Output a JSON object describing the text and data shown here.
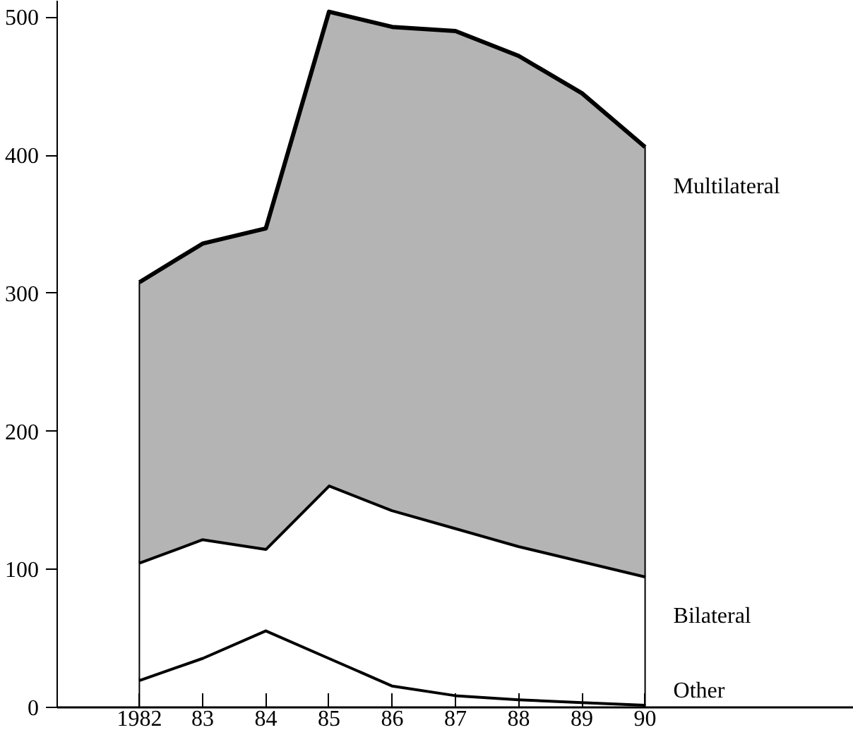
{
  "chart_data": {
    "type": "area",
    "stacked": true,
    "x": [
      1982,
      1983,
      1984,
      1985,
      1986,
      1987,
      1988,
      1989,
      1990
    ],
    "series": [
      {
        "name": "Other",
        "color": "#ffffff",
        "values": [
          20,
          36,
          56,
          36,
          16,
          9,
          6,
          4,
          2
        ]
      },
      {
        "name": "Bilateral",
        "color": "#ffffff",
        "values": [
          85,
          86,
          59,
          125,
          127,
          121,
          111,
          102,
          93
        ]
      },
      {
        "name": "Multilateral",
        "color": "#b4b4b4",
        "values": [
          203,
          214,
          232,
          343,
          350,
          360,
          355,
          339,
          311
        ]
      }
    ],
    "xlim": [
      1980.7,
      1993.3
    ],
    "ylim": [
      0,
      512
    ],
    "xticks": [
      {
        "value": 1982,
        "label": "1982"
      },
      {
        "value": 1983,
        "label": "83"
      },
      {
        "value": 1984,
        "label": "84"
      },
      {
        "value": 1985,
        "label": "85"
      },
      {
        "value": 1986,
        "label": "86"
      },
      {
        "value": 1987,
        "label": "87"
      },
      {
        "value": 1988,
        "label": "88"
      },
      {
        "value": 1989,
        "label": "89"
      },
      {
        "value": 1990,
        "label": "90"
      }
    ],
    "yticks": [
      0,
      100,
      200,
      300,
      400,
      500
    ],
    "grid": false
  }
}
